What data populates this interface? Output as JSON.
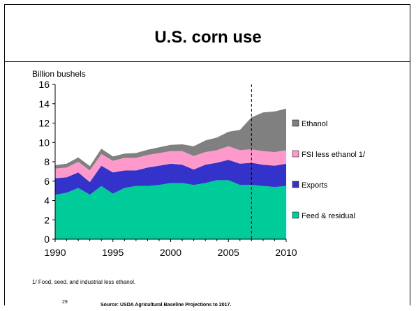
{
  "slide": {
    "title": "U.S. corn use",
    "footnote": "1/ Food, seed, and industrial less ethanol.",
    "page_number": "29",
    "source": "Source:  USDA Agricultural Baseline Projections to 2017."
  },
  "chart_data": {
    "type": "area",
    "stacked": true,
    "title": "",
    "xlabel": "",
    "ylabel": "Billion bushels",
    "ylim": [
      0,
      16
    ],
    "yticks": [
      0,
      2,
      4,
      6,
      8,
      10,
      12,
      14,
      16
    ],
    "xlim": [
      1990,
      2010
    ],
    "xticks": [
      1990,
      1995,
      2000,
      2005,
      2010
    ],
    "grid": false,
    "legend_position": "right",
    "projection_start_marker": 2007,
    "x": [
      1990,
      1991,
      1992,
      1993,
      1994,
      1995,
      1996,
      1997,
      1998,
      1999,
      2000,
      2001,
      2002,
      2003,
      2004,
      2005,
      2006,
      2007,
      2008,
      2009,
      2010
    ],
    "series": [
      {
        "name": "Feed & residual",
        "color": "#00cc99",
        "values": [
          4.6,
          4.8,
          5.3,
          4.6,
          5.5,
          4.7,
          5.3,
          5.5,
          5.5,
          5.6,
          5.8,
          5.8,
          5.6,
          5.8,
          6.1,
          6.1,
          5.6,
          5.6,
          5.5,
          5.4,
          5.5
        ]
      },
      {
        "name": "Exports",
        "color": "#3333cc",
        "values": [
          1.7,
          1.6,
          1.6,
          1.3,
          2.1,
          2.2,
          1.8,
          1.6,
          1.9,
          2.0,
          2.0,
          1.9,
          1.6,
          1.9,
          1.8,
          2.1,
          2.2,
          2.3,
          2.2,
          2.2,
          2.3
        ]
      },
      {
        "name": "FSI less ethanol 1/",
        "color": "#ff99cc",
        "values": [
          1.0,
          1.0,
          1.1,
          1.2,
          1.2,
          1.2,
          1.3,
          1.3,
          1.3,
          1.3,
          1.3,
          1.4,
          1.4,
          1.3,
          1.3,
          1.4,
          1.4,
          1.4,
          1.4,
          1.4,
          1.4
        ]
      },
      {
        "name": "Ethanol",
        "color": "#808080",
        "values": [
          0.35,
          0.4,
          0.45,
          0.45,
          0.55,
          0.45,
          0.45,
          0.5,
          0.55,
          0.6,
          0.65,
          0.7,
          1.0,
          1.2,
          1.3,
          1.5,
          2.1,
          3.3,
          4.0,
          4.2,
          4.3
        ]
      }
    ]
  }
}
